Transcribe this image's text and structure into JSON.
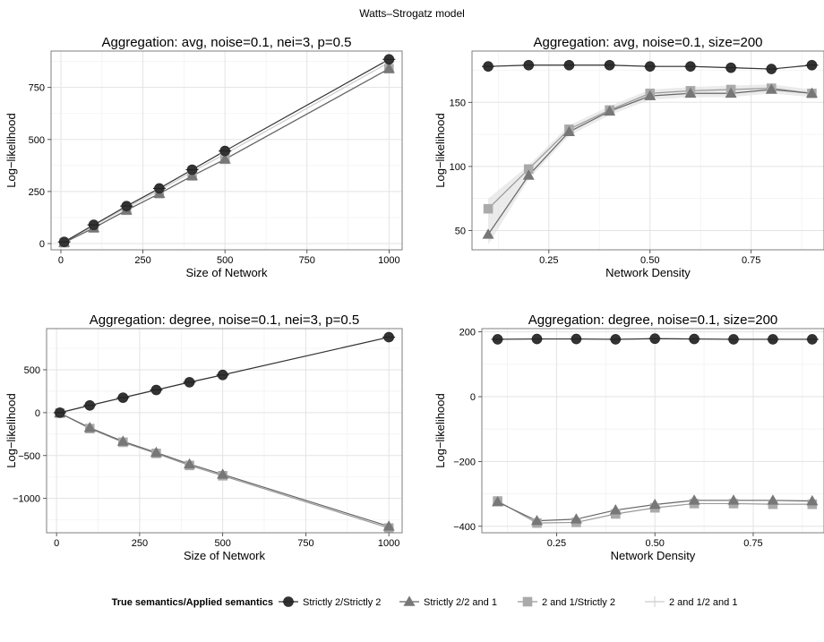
{
  "figure_title": "Watts–Strogatz model",
  "legend": {
    "title": "True semantics/Applied semantics",
    "entries": [
      {
        "label": "Strictly 2/Strictly 2",
        "marker": "circle",
        "color": "#333333"
      },
      {
        "label": "Strictly 2/2 and 1",
        "marker": "triangle",
        "color": "#777777"
      },
      {
        "label": "2 and 1/Strictly 2",
        "marker": "square",
        "color": "#aaaaaa"
      },
      {
        "label": "2 and 1/2 and 1",
        "marker": "cross",
        "color": "#d0d0d0"
      }
    ]
  },
  "chart_data": [
    {
      "type": "line",
      "title": "Aggregation: avg, noise=0.1, nei=3, p=0.5",
      "xlabel": "Size of Network",
      "ylabel": "Log−likelihood",
      "xlim": [
        -30,
        1040
      ],
      "ylim": [
        -30,
        925
      ],
      "xticks": [
        0,
        250,
        500,
        750,
        1000
      ],
      "yticks": [
        0,
        250,
        500,
        750
      ],
      "ytick_labels": [
        "0",
        "250",
        "500",
        "750"
      ],
      "x": [
        10,
        100,
        200,
        300,
        400,
        500,
        1000
      ],
      "series": [
        {
          "name": "Strictly 2/Strictly 2",
          "values": [
            8,
            90,
            180,
            265,
            355,
            445,
            885
          ]
        },
        {
          "name": "Strictly 2/2 and 1",
          "values": [
            5,
            75,
            160,
            240,
            325,
            405,
            840
          ]
        },
        {
          "name": "2 and 1/Strictly 2",
          "values": [
            4,
            75,
            160,
            240,
            325,
            405,
            840
          ]
        },
        {
          "name": "2 and 1/2 and 1",
          "values": [
            7,
            85,
            172,
            255,
            345,
            430,
            870
          ]
        }
      ]
    },
    {
      "type": "line",
      "title": "Aggregation: avg, noise=0.1, size=200",
      "xlabel": "Network Density",
      "ylabel": "Log−likelihood",
      "xlim": [
        0.06,
        0.93
      ],
      "ylim": [
        35,
        190
      ],
      "xticks": [
        0.25,
        0.5,
        0.75
      ],
      "xtick_labels": [
        "0.25",
        "0.50",
        "0.75"
      ],
      "yticks": [
        50,
        100,
        150
      ],
      "ytick_labels": [
        "50",
        "100",
        "150"
      ],
      "x": [
        0.1,
        0.2,
        0.3,
        0.4,
        0.5,
        0.6,
        0.7,
        0.8,
        0.9
      ],
      "series": [
        {
          "name": "Strictly 2/Strictly 2",
          "values": [
            178,
            179,
            179,
            179,
            178,
            178,
            177,
            176,
            179
          ]
        },
        {
          "name": "Strictly 2/2 and 1",
          "values": [
            47,
            93,
            127,
            143,
            155,
            157,
            157,
            160,
            157
          ]
        },
        {
          "name": "2 and 1/Strictly 2",
          "values": [
            67,
            98,
            129,
            144,
            157,
            159,
            160,
            161,
            157
          ]
        },
        {
          "name": "2 and 1/2 and 1",
          "values": [
            178,
            179,
            179,
            179,
            178,
            178,
            177,
            176,
            179
          ]
        }
      ]
    },
    {
      "type": "line",
      "title": "Aggregation: degree, noise=0.1, nei=3, p=0.5",
      "xlabel": "Size of Network",
      "ylabel": "Log−likelihood",
      "xlim": [
        -30,
        1040
      ],
      "ylim": [
        -1400,
        980
      ],
      "xticks": [
        0,
        250,
        500,
        750,
        1000
      ],
      "yticks": [
        -1000,
        -500,
        0,
        500
      ],
      "ytick_labels": [
        "−1000",
        "−500",
        "0",
        "500"
      ],
      "x": [
        10,
        100,
        200,
        300,
        400,
        500,
        1000
      ],
      "series": [
        {
          "name": "Strictly 2/Strictly 2",
          "values": [
            0,
            85,
            175,
            265,
            355,
            440,
            880
          ]
        },
        {
          "name": "Strictly 2/2 and 1",
          "values": [
            -5,
            -175,
            -335,
            -465,
            -600,
            -720,
            -1325
          ]
        },
        {
          "name": "2 and 1/Strictly 2",
          "values": [
            -5,
            -185,
            -345,
            -475,
            -615,
            -735,
            -1345
          ]
        },
        {
          "name": "2 and 1/2 and 1",
          "values": [
            0,
            85,
            175,
            265,
            355,
            440,
            880
          ]
        }
      ]
    },
    {
      "type": "line",
      "title": "Aggregation: degree, noise=0.1, size=200",
      "xlabel": "Network Density",
      "ylabel": "Log−likelihood",
      "xlim": [
        0.06,
        0.93
      ],
      "ylim": [
        -420,
        210
      ],
      "xticks": [
        0.25,
        0.5,
        0.75
      ],
      "xtick_labels": [
        "0.25",
        "0.50",
        "0.75"
      ],
      "yticks": [
        -400,
        -200,
        0,
        200
      ],
      "ytick_labels": [
        "−400",
        "−200",
        "0",
        "200"
      ],
      "x": [
        0.1,
        0.2,
        0.3,
        0.4,
        0.5,
        0.6,
        0.7,
        0.8,
        0.9
      ],
      "series": [
        {
          "name": "Strictly 2/Strictly 2",
          "values": [
            177,
            178,
            178,
            177,
            179,
            178,
            177,
            177,
            177
          ]
        },
        {
          "name": "Strictly 2/2 and 1",
          "values": [
            -325,
            -383,
            -378,
            -350,
            -333,
            -320,
            -320,
            -320,
            -322
          ]
        },
        {
          "name": "2 and 1/Strictly 2",
          "values": [
            -322,
            -390,
            -388,
            -362,
            -343,
            -330,
            -330,
            -332,
            -332
          ]
        },
        {
          "name": "2 and 1/2 and 1",
          "values": [
            177,
            178,
            178,
            177,
            179,
            178,
            177,
            177,
            177
          ]
        }
      ]
    }
  ]
}
